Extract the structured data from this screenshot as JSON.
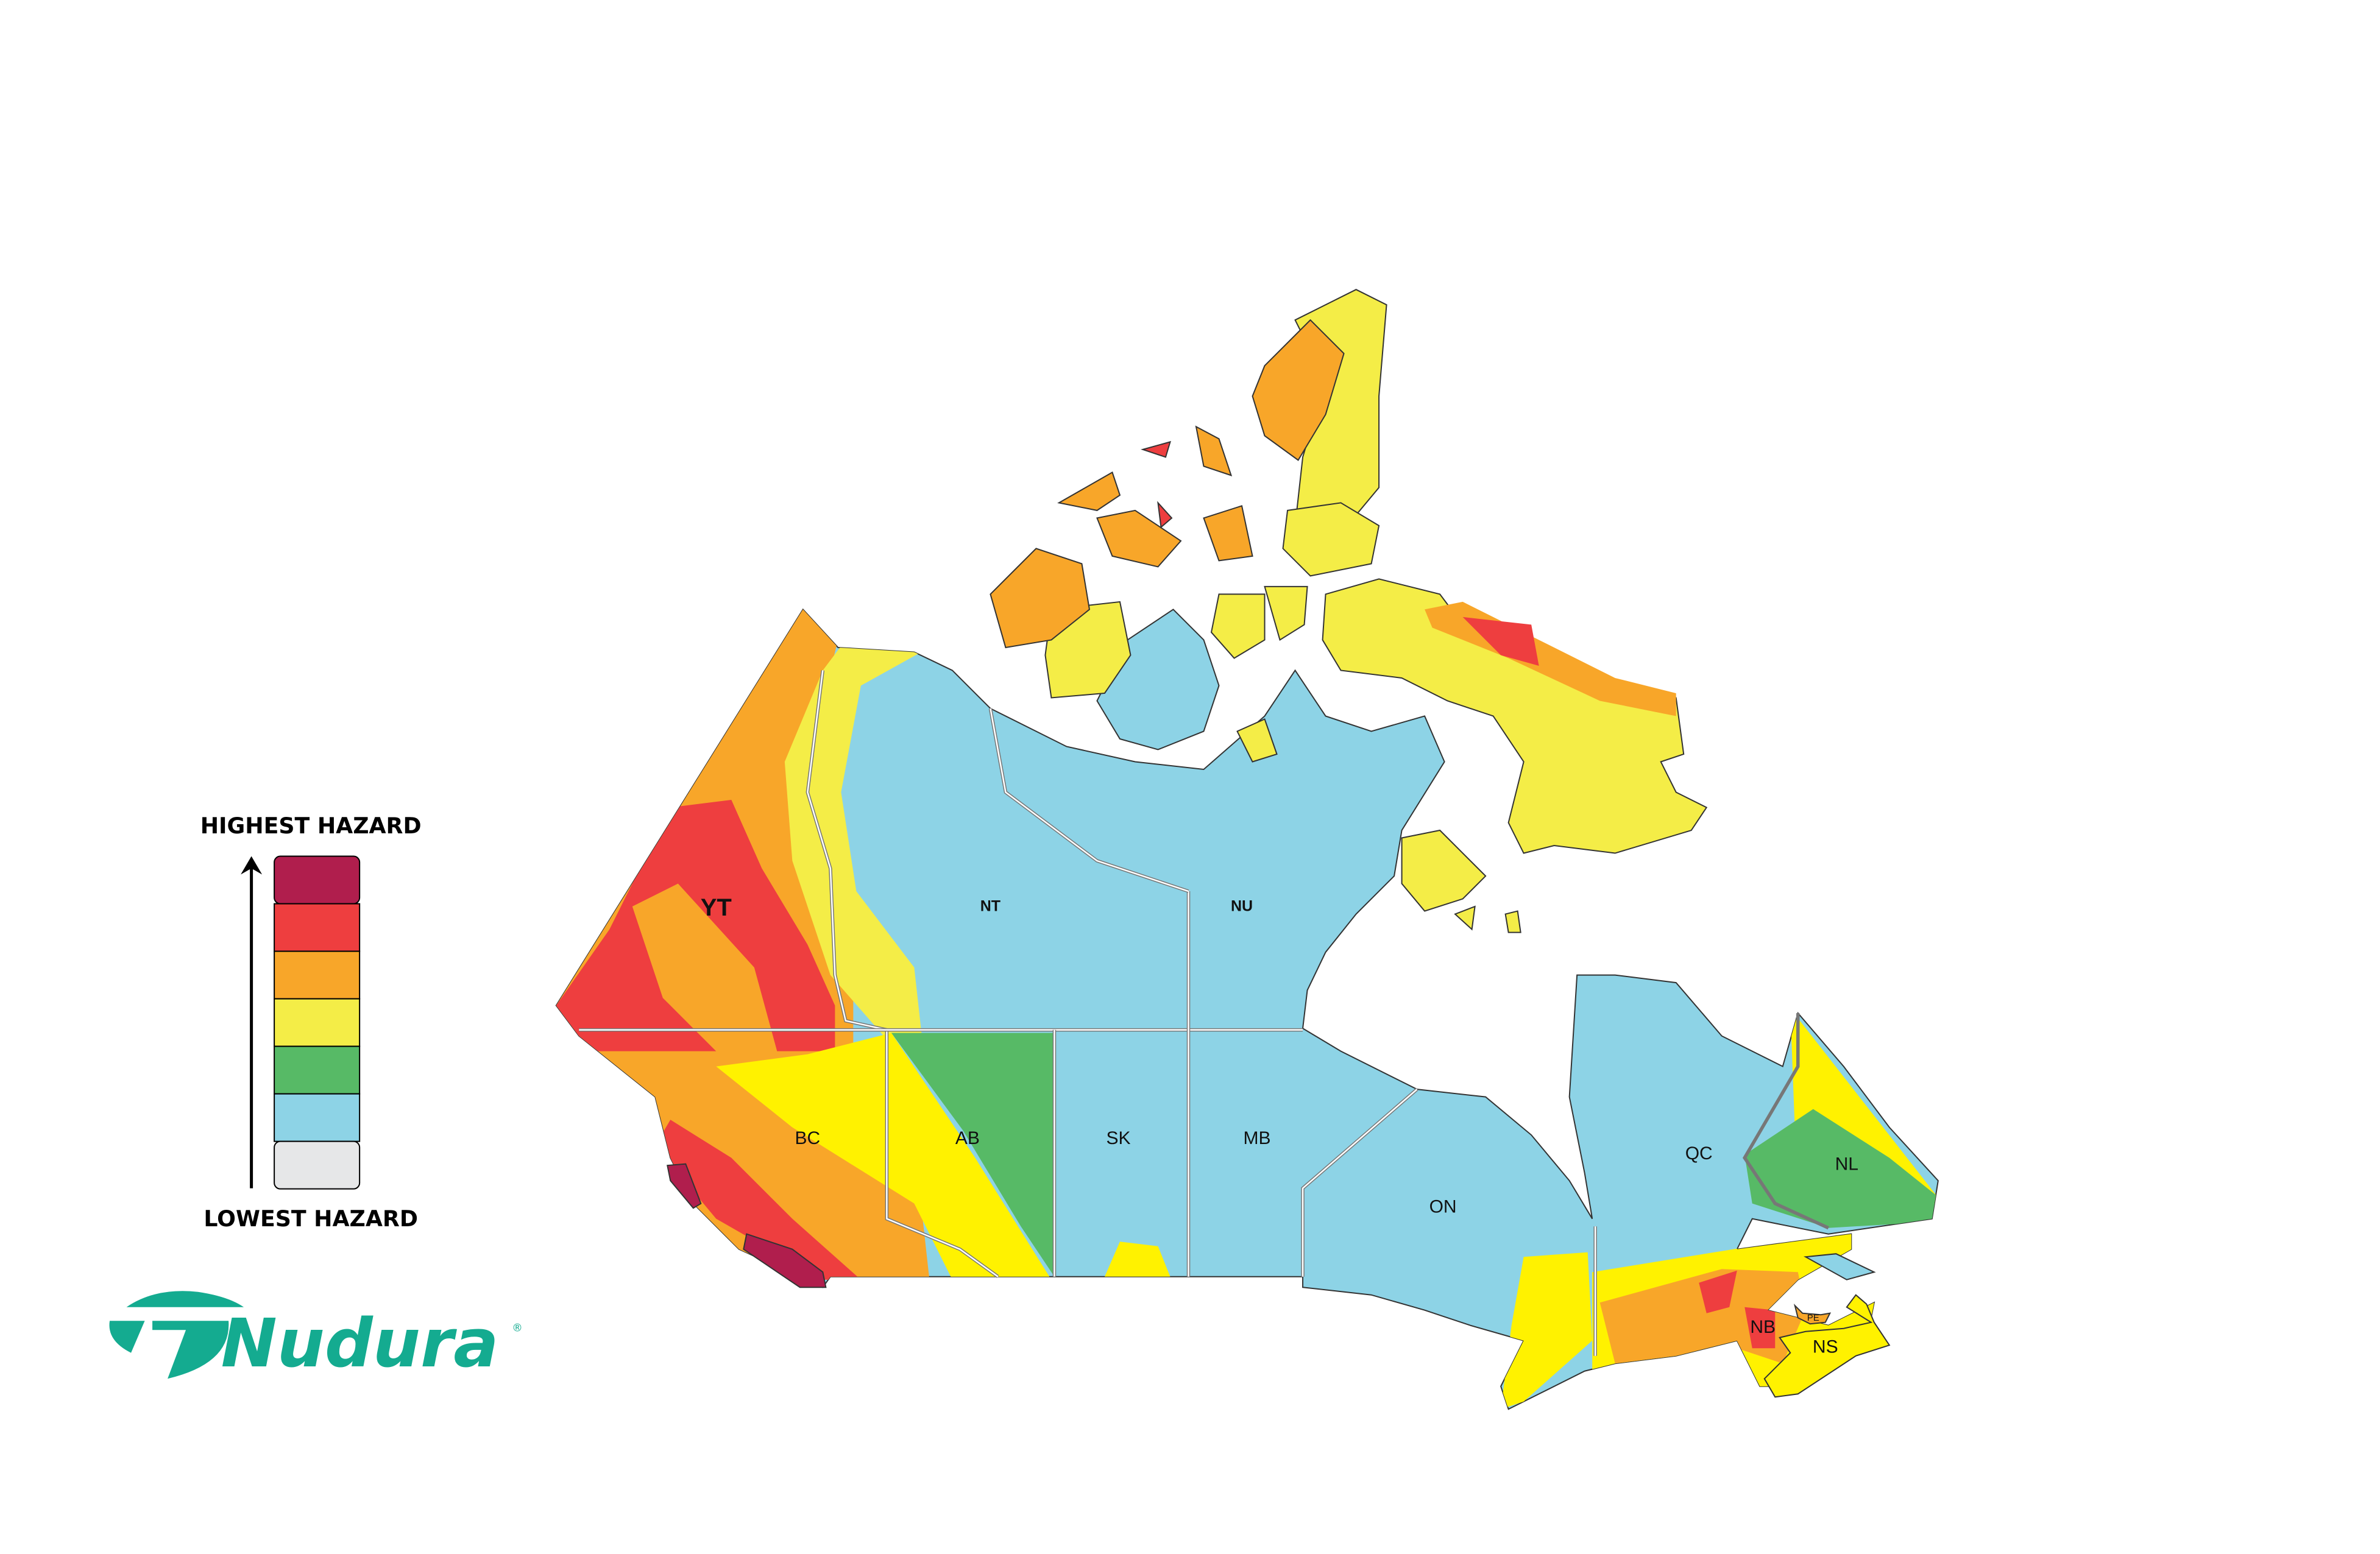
{
  "map": {
    "province_labels": {
      "YT": "YT",
      "NT": "NT",
      "NU": "NU",
      "BC": "BC",
      "AB": "AB",
      "SK": "SK",
      "MB": "MB",
      "ON": "ON",
      "QC": "QC",
      "NL": "NL",
      "NB": "NB",
      "PE": "PE",
      "NS": "NS"
    },
    "colors": {
      "background_land": "#8dd3e6",
      "border": "#7a7a7a"
    }
  },
  "legend": {
    "high_label": "HIGHEST HAZARD",
    "low_label": "LOWEST HAZARD",
    "levels": [
      {
        "rank": 7,
        "color": "#b01e4d"
      },
      {
        "rank": 6,
        "color": "#ee3e3f"
      },
      {
        "rank": 5,
        "color": "#f8a629"
      },
      {
        "rank": 4,
        "color": "#f4ed47"
      },
      {
        "rank": 3,
        "color": "#57ba66"
      },
      {
        "rank": 2,
        "color": "#8dd3e6"
      },
      {
        "rank": 1,
        "color": "#e6e7e8"
      }
    ],
    "arrow_icon": "up-arrow"
  },
  "brand": {
    "name": "Nudura",
    "registered_mark": "®",
    "color": "#14ab90"
  }
}
